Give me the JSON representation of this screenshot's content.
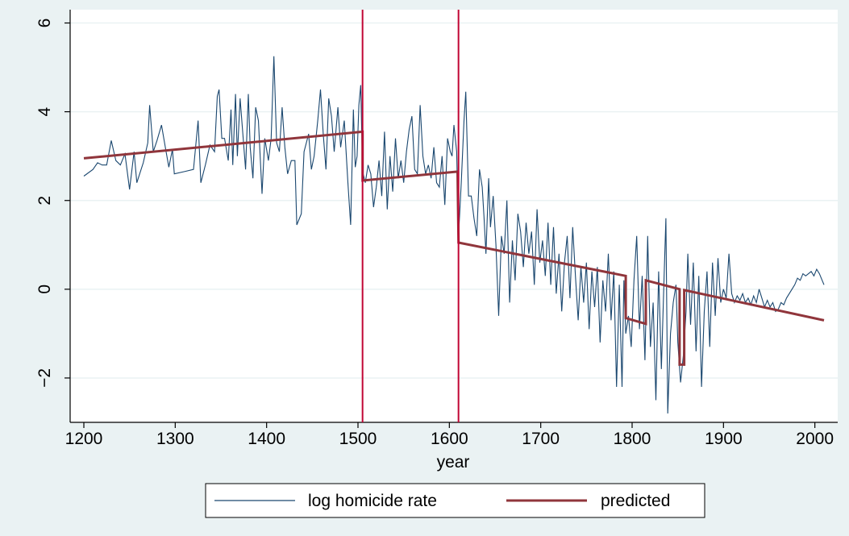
{
  "chart_data": {
    "type": "line",
    "title": "",
    "xlabel": "year",
    "ylabel": "",
    "xlim": [
      1185,
      2025
    ],
    "ylim": [
      -3,
      6.3
    ],
    "x_ticks": [
      1200,
      1300,
      1400,
      1500,
      1600,
      1700,
      1800,
      1900,
      2000
    ],
    "y_ticks": [
      -2,
      0,
      2,
      4,
      6
    ],
    "grid": true,
    "legend_position": "bottom",
    "vertical_lines": [
      1505,
      1610
    ],
    "colors": {
      "observed": "#1a476f",
      "predicted": "#90353b",
      "vlines": "#c10534",
      "plot_bg": "#ffffff",
      "page_bg": "#eaf2f3",
      "grid": "#eaf2f3"
    },
    "series": [
      {
        "name": "log homicide rate",
        "style": "thin",
        "points": [
          [
            1200,
            2.55
          ],
          [
            1210,
            2.7
          ],
          [
            1215,
            2.85
          ],
          [
            1220,
            2.8
          ],
          [
            1225,
            2.8
          ],
          [
            1230,
            3.35
          ],
          [
            1235,
            2.9
          ],
          [
            1240,
            2.8
          ],
          [
            1245,
            3.05
          ],
          [
            1250,
            2.25
          ],
          [
            1255,
            3.1
          ],
          [
            1258,
            2.4
          ],
          [
            1265,
            2.85
          ],
          [
            1270,
            3.3
          ],
          [
            1272,
            4.15
          ],
          [
            1276,
            3.1
          ],
          [
            1280,
            3.35
          ],
          [
            1285,
            3.7
          ],
          [
            1290,
            3.1
          ],
          [
            1293,
            2.75
          ],
          [
            1297,
            3.15
          ],
          [
            1299,
            2.6
          ],
          [
            1310,
            2.65
          ],
          [
            1320,
            2.7
          ],
          [
            1325,
            3.8
          ],
          [
            1328,
            2.4
          ],
          [
            1333,
            2.8
          ],
          [
            1338,
            3.25
          ],
          [
            1343,
            3.1
          ],
          [
            1346,
            4.35
          ],
          [
            1348,
            4.5
          ],
          [
            1351,
            3.4
          ],
          [
            1354,
            3.4
          ],
          [
            1358,
            2.9
          ],
          [
            1361,
            4.05
          ],
          [
            1363,
            2.8
          ],
          [
            1366,
            4.4
          ],
          [
            1368,
            3.0
          ],
          [
            1371,
            4.3
          ],
          [
            1374,
            3.5
          ],
          [
            1377,
            2.7
          ],
          [
            1380,
            4.4
          ],
          [
            1382,
            3.2
          ],
          [
            1385,
            2.5
          ],
          [
            1388,
            4.1
          ],
          [
            1391,
            3.8
          ],
          [
            1395,
            2.15
          ],
          [
            1398,
            3.4
          ],
          [
            1402,
            2.9
          ],
          [
            1405,
            3.4
          ],
          [
            1408,
            5.25
          ],
          [
            1411,
            3.3
          ],
          [
            1414,
            3.1
          ],
          [
            1417,
            4.1
          ],
          [
            1420,
            3.2
          ],
          [
            1423,
            2.6
          ],
          [
            1427,
            2.9
          ],
          [
            1431,
            2.9
          ],
          [
            1433,
            1.45
          ],
          [
            1438,
            1.7
          ],
          [
            1441,
            3.1
          ],
          [
            1446,
            3.5
          ],
          [
            1449,
            2.7
          ],
          [
            1452,
            3.0
          ],
          [
            1456,
            3.8
          ],
          [
            1459,
            4.5
          ],
          [
            1462,
            3.5
          ],
          [
            1465,
            2.7
          ],
          [
            1468,
            4.3
          ],
          [
            1471,
            3.9
          ],
          [
            1474,
            3.1
          ],
          [
            1478,
            4.1
          ],
          [
            1481,
            3.2
          ],
          [
            1485,
            3.8
          ],
          [
            1489,
            2.4
          ],
          [
            1492,
            1.45
          ],
          [
            1495,
            4.05
          ],
          [
            1497,
            2.75
          ],
          [
            1499,
            3.0
          ],
          [
            1501,
            4.15
          ],
          [
            1503,
            4.6
          ],
          [
            1505,
            2.65
          ],
          [
            1508,
            2.4
          ],
          [
            1511,
            2.8
          ],
          [
            1514,
            2.6
          ],
          [
            1517,
            1.85
          ],
          [
            1520,
            2.3
          ],
          [
            1523,
            2.9
          ],
          [
            1526,
            2.1
          ],
          [
            1529,
            3.55
          ],
          [
            1532,
            1.8
          ],
          [
            1535,
            3.0
          ],
          [
            1538,
            2.2
          ],
          [
            1541,
            3.4
          ],
          [
            1544,
            2.5
          ],
          [
            1547,
            2.9
          ],
          [
            1550,
            2.4
          ],
          [
            1553,
            3.1
          ],
          [
            1556,
            3.6
          ],
          [
            1559,
            3.9
          ],
          [
            1562,
            2.7
          ],
          [
            1565,
            2.6
          ],
          [
            1568,
            4.15
          ],
          [
            1571,
            3.0
          ],
          [
            1574,
            2.6
          ],
          [
            1577,
            2.8
          ],
          [
            1580,
            2.5
          ],
          [
            1583,
            3.2
          ],
          [
            1586,
            2.4
          ],
          [
            1589,
            2.3
          ],
          [
            1592,
            3.0
          ],
          [
            1595,
            1.9
          ],
          [
            1598,
            3.4
          ],
          [
            1601,
            3.1
          ],
          [
            1603,
            3.0
          ],
          [
            1605,
            3.7
          ],
          [
            1608,
            3.1
          ],
          [
            1610,
            1.2
          ],
          [
            1613,
            2.4
          ],
          [
            1616,
            3.8
          ],
          [
            1618,
            4.45
          ],
          [
            1621,
            2.1
          ],
          [
            1624,
            2.1
          ],
          [
            1627,
            1.6
          ],
          [
            1630,
            1.2
          ],
          [
            1633,
            2.7
          ],
          [
            1636,
            2.3
          ],
          [
            1638,
            1.6
          ],
          [
            1640,
            0.8
          ],
          [
            1643,
            2.5
          ],
          [
            1645,
            1.4
          ],
          [
            1648,
            2.1
          ],
          [
            1651,
            1.0
          ],
          [
            1654,
            -0.6
          ],
          [
            1657,
            1.2
          ],
          [
            1660,
            0.8
          ],
          [
            1663,
            2.0
          ],
          [
            1666,
            -0.3
          ],
          [
            1669,
            1.1
          ],
          [
            1672,
            0.2
          ],
          [
            1675,
            1.7
          ],
          [
            1678,
            1.3
          ],
          [
            1681,
            0.5
          ],
          [
            1684,
            1.5
          ],
          [
            1687,
            0.8
          ],
          [
            1690,
            1.3
          ],
          [
            1693,
            0.1
          ],
          [
            1696,
            1.8
          ],
          [
            1699,
            0.6
          ],
          [
            1702,
            1.1
          ],
          [
            1705,
            0.3
          ],
          [
            1708,
            1.5
          ],
          [
            1711,
            0.1
          ],
          [
            1714,
            1.4
          ],
          [
            1717,
            -0.1
          ],
          [
            1720,
            0.8
          ],
          [
            1723,
            -0.5
          ],
          [
            1726,
            0.6
          ],
          [
            1729,
            1.2
          ],
          [
            1732,
            -0.2
          ],
          [
            1735,
            1.4
          ],
          [
            1738,
            0.3
          ],
          [
            1741,
            -0.7
          ],
          [
            1744,
            0.5
          ],
          [
            1747,
            -0.3
          ],
          [
            1750,
            0.6
          ],
          [
            1753,
            -0.9
          ],
          [
            1756,
            0.4
          ],
          [
            1759,
            -0.4
          ],
          [
            1762,
            0.5
          ],
          [
            1765,
            -1.2
          ],
          [
            1768,
            0.2
          ],
          [
            1771,
            -0.5
          ],
          [
            1774,
            0.8
          ],
          [
            1777,
            -0.7
          ],
          [
            1780,
            0.4
          ],
          [
            1783,
            -2.2
          ],
          [
            1786,
            0.1
          ],
          [
            1789,
            -2.2
          ],
          [
            1791,
            0.2
          ],
          [
            1793,
            -1.0
          ],
          [
            1796,
            -0.6
          ],
          [
            1799,
            -1.3
          ],
          [
            1802,
            0.2
          ],
          [
            1805,
            1.2
          ],
          [
            1808,
            -0.9
          ],
          [
            1811,
            0.3
          ],
          [
            1814,
            -1.6
          ],
          [
            1817,
            1.2
          ],
          [
            1820,
            -1.3
          ],
          [
            1823,
            -0.3
          ],
          [
            1826,
            -2.5
          ],
          [
            1829,
            0.4
          ],
          [
            1832,
            -1.8
          ],
          [
            1835,
            0.3
          ],
          [
            1837,
            1.6
          ],
          [
            1839,
            -2.8
          ],
          [
            1842,
            -1.0
          ],
          [
            1845,
            -0.3
          ],
          [
            1848,
            0.1
          ],
          [
            1850,
            -1.2
          ],
          [
            1853,
            -2.1
          ],
          [
            1856,
            -1.5
          ],
          [
            1859,
            -0.5
          ],
          [
            1861,
            0.8
          ],
          [
            1864,
            -0.8
          ],
          [
            1867,
            0.6
          ],
          [
            1870,
            -1.4
          ],
          [
            1873,
            0.3
          ],
          [
            1876,
            -2.2
          ],
          [
            1879,
            -0.5
          ],
          [
            1882,
            0.4
          ],
          [
            1885,
            -1.3
          ],
          [
            1888,
            0.6
          ],
          [
            1891,
            -0.6
          ],
          [
            1894,
            0.7
          ],
          [
            1897,
            -0.3
          ],
          [
            1900,
            0.0
          ],
          [
            1903,
            -0.2
          ],
          [
            1906,
            0.8
          ],
          [
            1909,
            -0.1
          ],
          [
            1912,
            -0.3
          ],
          [
            1915,
            -0.15
          ],
          [
            1918,
            -0.25
          ],
          [
            1921,
            -0.1
          ],
          [
            1924,
            -0.3
          ],
          [
            1927,
            -0.2
          ],
          [
            1930,
            -0.35
          ],
          [
            1933,
            -0.15
          ],
          [
            1936,
            -0.3
          ],
          [
            1939,
            0.0
          ],
          [
            1942,
            -0.2
          ],
          [
            1945,
            -0.4
          ],
          [
            1948,
            -0.25
          ],
          [
            1951,
            -0.4
          ],
          [
            1954,
            -0.3
          ],
          [
            1957,
            -0.5
          ],
          [
            1960,
            -0.45
          ],
          [
            1963,
            -0.3
          ],
          [
            1966,
            -0.35
          ],
          [
            1969,
            -0.2
          ],
          [
            1972,
            -0.1
          ],
          [
            1975,
            0.0
          ],
          [
            1978,
            0.1
          ],
          [
            1981,
            0.25
          ],
          [
            1984,
            0.2
          ],
          [
            1987,
            0.35
          ],
          [
            1990,
            0.3
          ],
          [
            1993,
            0.35
          ],
          [
            1996,
            0.4
          ],
          [
            1999,
            0.3
          ],
          [
            2002,
            0.45
          ],
          [
            2005,
            0.35
          ],
          [
            2008,
            0.2
          ],
          [
            2010,
            0.1
          ]
        ]
      },
      {
        "name": "predicted",
        "style": "thick",
        "points": [
          [
            1200,
            2.95
          ],
          [
            1505,
            3.55
          ],
          [
            1505,
            2.45
          ],
          [
            1609,
            2.65
          ],
          [
            1610,
            1.05
          ],
          [
            1793,
            0.3
          ],
          [
            1793,
            -0.65
          ],
          [
            1815,
            -0.78
          ],
          [
            1815,
            0.2
          ],
          [
            1852,
            0.0
          ],
          [
            1852,
            -1.7
          ],
          [
            1857,
            -1.7
          ],
          [
            1857,
            -0.02
          ],
          [
            2010,
            -0.7
          ]
        ]
      }
    ]
  }
}
